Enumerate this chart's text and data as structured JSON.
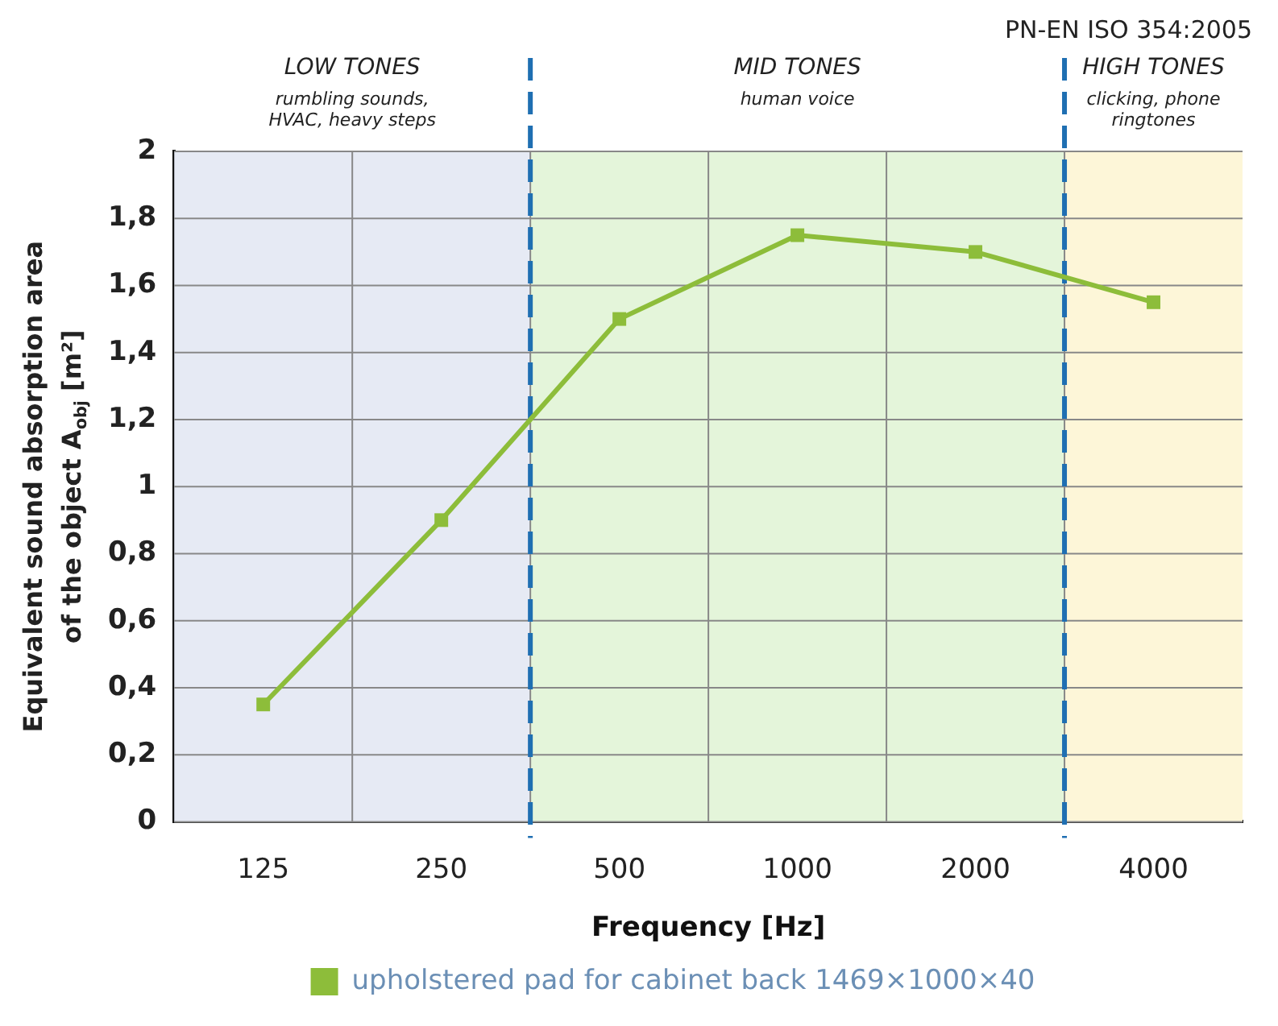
{
  "chart_data": {
    "type": "line",
    "xlabel": "Frequency [Hz]",
    "ylabel": "Equivalent sound absorption area\nof the object A$_{obj}$ [m²]",
    "annotations": [
      "PN-EN ISO 354:2005"
    ],
    "categories": [
      "125",
      "250",
      "500",
      "1000",
      "2000",
      "4000"
    ],
    "series": [
      {
        "name": "upholstered pad for cabinet back 1469×1000×40",
        "color": "#8dbd3a",
        "values": [
          0.35,
          0.9,
          1.5,
          1.75,
          1.7,
          1.55
        ]
      }
    ],
    "ylim": [
      0,
      2
    ],
    "yticks": [
      0,
      {
        "value": 0.2,
        "label": "0,2"
      },
      {
        "value": 0.4,
        "label": "0,4"
      },
      {
        "value": 0.6,
        "label": "0,6"
      },
      {
        "value": 0.8,
        "label": "0,8"
      },
      1,
      {
        "value": 1.2,
        "label": "1,2"
      },
      {
        "value": 1.4,
        "label": "1,4"
      },
      {
        "value": 1.6,
        "label": "1,6"
      },
      {
        "value": 1.8,
        "label": "1,8"
      },
      2
    ],
    "bands": [
      {
        "axis": "x",
        "from": "125",
        "to": "250",
        "label": "LOW TONES\nrumbling sounds,\nHVAC, heavy steps",
        "color": "#e6eaf4"
      },
      {
        "axis": "x",
        "from": "500",
        "to": "2000",
        "label": "MID TONES\nhuman voice",
        "color": "#e4f5da"
      },
      {
        "axis": "x",
        "from": "4000",
        "to": "4000",
        "label": "HIGH TONES\nclicking, phone\nringtones",
        "color": "#fdf6d8"
      }
    ],
    "grid": true,
    "legend": "bottom",
    "marker": "square",
    "line_style": "solid"
  }
}
